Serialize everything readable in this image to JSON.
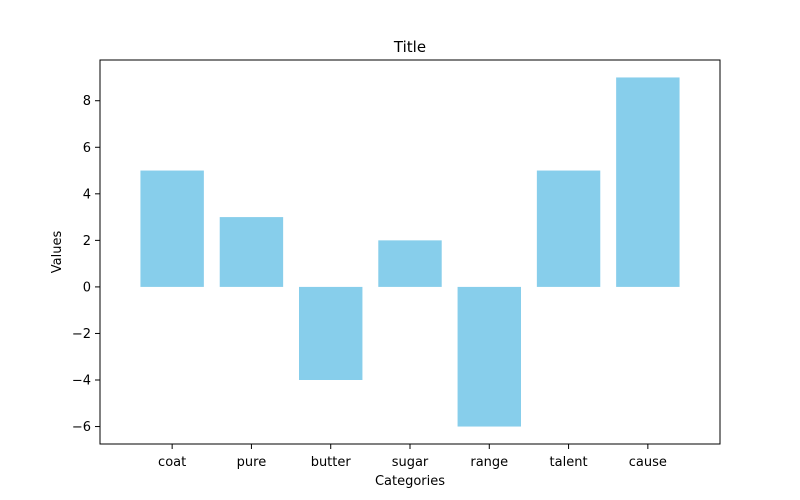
{
  "chart_data": {
    "type": "bar",
    "title": "Title",
    "xlabel": "Categories",
    "ylabel": "Values",
    "categories": [
      "coat",
      "pure",
      "butter",
      "sugar",
      "range",
      "talent",
      "cause"
    ],
    "values": [
      5,
      3,
      -4,
      2,
      -6,
      5,
      9
    ],
    "ylim": [
      -6.75,
      9.75
    ],
    "yticks": [
      -6,
      -4,
      -2,
      0,
      2,
      4,
      6,
      8
    ],
    "ytick_labels": [
      "−6",
      "−4",
      "−2",
      "0",
      "2",
      "4",
      "6",
      "8"
    ],
    "bar_color": "#87ceeb",
    "grid": false,
    "legend": "none"
  }
}
